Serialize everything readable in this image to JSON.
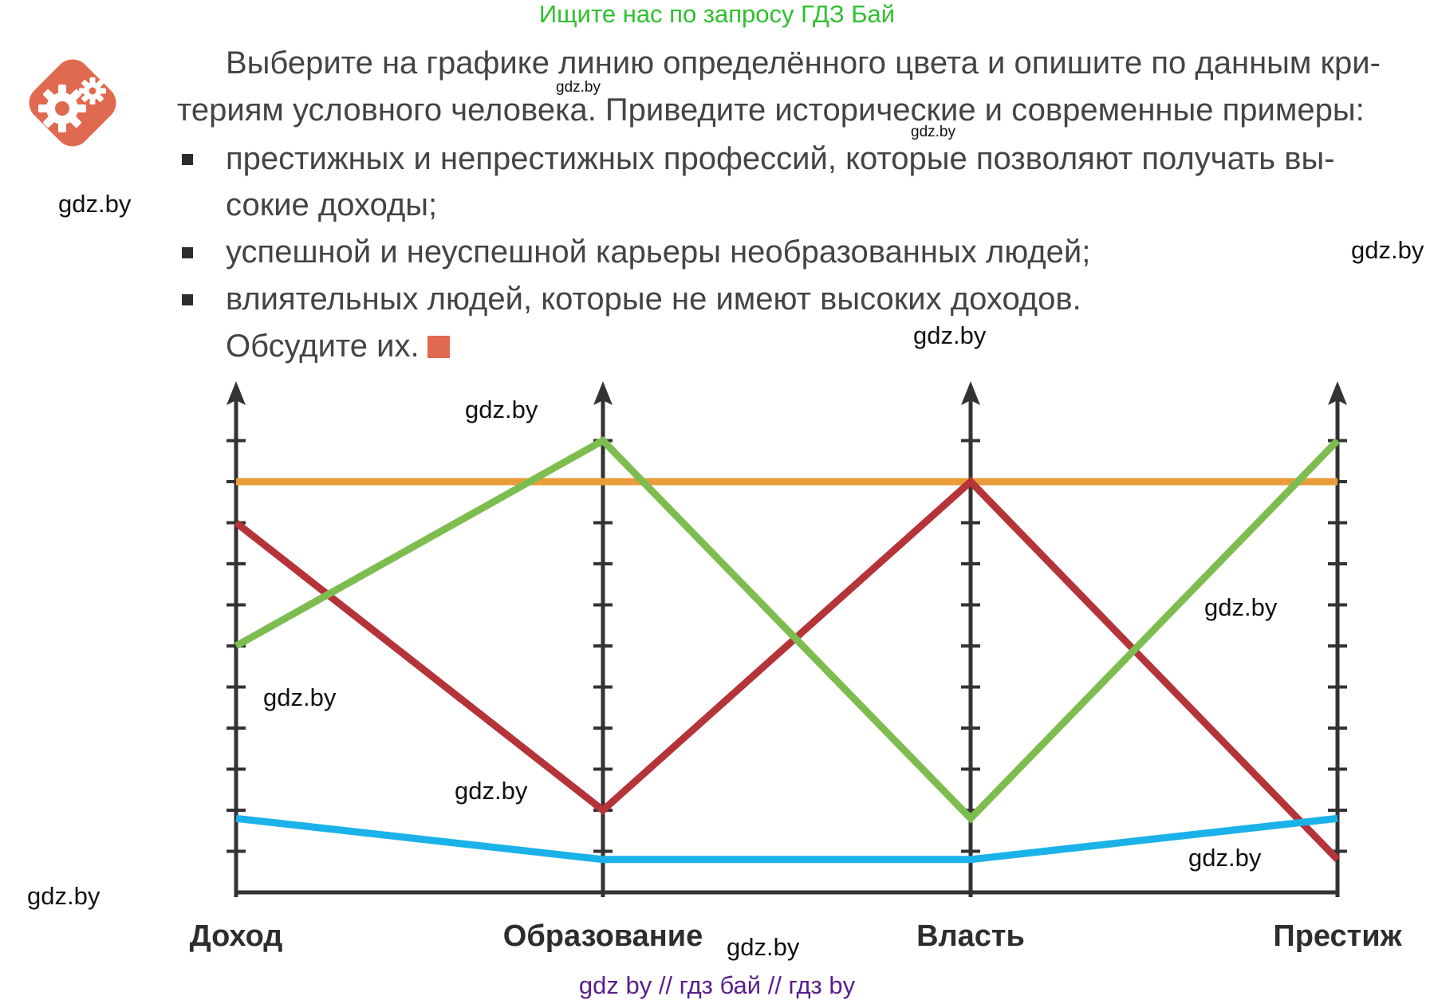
{
  "banner": "Ищите нас по запросу ГДЗ Бай",
  "task": {
    "intro_line1": "Выберите на графике линию определённого цвета и опишите по данным кри-",
    "intro_line2": "териям условного человека. Приведите исторические и современные примеры:",
    "bullets": [
      {
        "line1": "престижных и непрестижных профессий, которые позволяют получать вы-",
        "line2": "сокие доходы;"
      },
      {
        "line1": "успешной и неуспешной карьеры необразованных людей;"
      },
      {
        "line1": "влиятельных людей, которые не имеют высоких доходов."
      }
    ],
    "closing": "Обсудите их.",
    "marker_color": "#e06a4f"
  },
  "icon": {
    "name": "gears-icon",
    "color": "#e06a4f"
  },
  "watermarks": {
    "w1": "gdz.by",
    "w2": "gdz.by",
    "w3": "gdz.by",
    "w4": "gdz.by",
    "w5": "gdz.by",
    "w6": "gdz.by",
    "w7": "gdz.by",
    "w8": "gdz.by",
    "w9": "gdz.by",
    "w10": "gdz.by",
    "w11": "gdz.by",
    "w12": "gdz.by"
  },
  "footer": "gdz by  //  гдз бай  //  гдз by",
  "chart_data": {
    "type": "line",
    "title": "",
    "categories": [
      "Доход",
      "Образование",
      "Власть",
      "Престиж"
    ],
    "ylim": [
      0,
      12
    ],
    "tick_count": 11,
    "series": [
      {
        "name": "orange",
        "color": "#e99c3a",
        "values": [
          10,
          10,
          10,
          10
        ]
      },
      {
        "name": "red",
        "color": "#b5343a",
        "values": [
          9,
          2,
          10,
          0.8
        ]
      },
      {
        "name": "green",
        "color": "#7dbd4f",
        "values": [
          6,
          11,
          1.8,
          11
        ]
      },
      {
        "name": "blue",
        "color": "#1ab2e8",
        "values": [
          1.8,
          0.8,
          0.8,
          1.8
        ]
      }
    ]
  }
}
